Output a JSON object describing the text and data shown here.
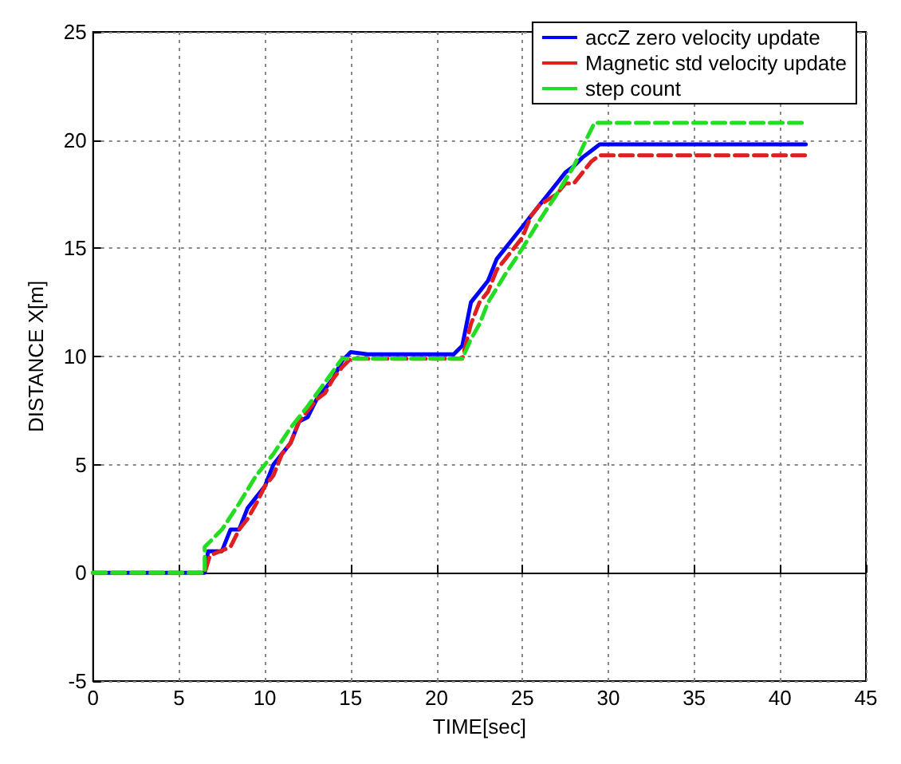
{
  "chart_data": {
    "type": "line",
    "xlabel": "TIME[sec]",
    "ylabel": "DISTANCE X[m]",
    "xlim": [
      0,
      45
    ],
    "xticks": [
      0,
      5,
      10,
      15,
      20,
      25,
      30,
      35,
      40,
      45
    ],
    "ylim": [
      -5,
      25
    ],
    "yticks": [
      -5,
      0,
      5,
      10,
      15,
      20,
      25
    ],
    "grid": true,
    "legend": "top right",
    "marker": "none",
    "series": [
      {
        "name": "accZ zero velocity update",
        "color": "#0000ff",
        "line_style": "solid",
        "x": [
          0,
          6.5,
          6.7,
          7.5,
          8,
          8.5,
          9,
          9.5,
          10,
          10.5,
          11,
          11.5,
          12,
          12.5,
          13,
          13.5,
          14,
          14.5,
          15,
          16,
          21,
          21.5,
          22,
          22.5,
          23,
          23.5,
          24,
          24.5,
          25,
          25.5,
          26,
          26.5,
          27,
          27.5,
          28,
          28.5,
          29,
          29.5,
          30,
          41.5
        ],
        "values": [
          0,
          0,
          1,
          1,
          2,
          2,
          3,
          3.5,
          4,
          5,
          5.5,
          6,
          7,
          7.2,
          8,
          8.5,
          9,
          9.8,
          10.2,
          10.1,
          10.1,
          10.5,
          12.5,
          13,
          13.5,
          14.5,
          15,
          15.5,
          16,
          16.5,
          17,
          17.5,
          18,
          18.5,
          18.8,
          19.2,
          19.5,
          19.8,
          19.8,
          19.8
        ]
      },
      {
        "name": "Magnetic std velocity update",
        "color": "#e02020",
        "line_style": "dashed",
        "x": [
          0,
          6.5,
          6.8,
          8,
          8.5,
          9,
          9.5,
          10,
          10.5,
          11,
          11.5,
          12,
          12.5,
          13,
          13.5,
          14,
          14.5,
          15,
          21.5,
          22,
          22.5,
          23,
          23.5,
          24,
          24.5,
          25,
          25.5,
          26,
          27,
          27.5,
          28,
          28.5,
          29,
          29.5,
          41.5
        ],
        "values": [
          0,
          0,
          0.8,
          1.2,
          2,
          2.5,
          3.2,
          4,
          4.5,
          5.5,
          6,
          7,
          7.5,
          8,
          8.3,
          9,
          9.5,
          9.9,
          9.9,
          11.5,
          12.5,
          13,
          14,
          14.5,
          15,
          15.5,
          16.5,
          17,
          17.5,
          18,
          18,
          18.5,
          19,
          19.3,
          19.3
        ]
      },
      {
        "name": "step count",
        "color": "#22dd22",
        "line_style": "dashed",
        "x": [
          0,
          6.5,
          6.5,
          7.5,
          8.5,
          9.5,
          10.5,
          11.5,
          12.5,
          13.5,
          14.5,
          21.5,
          22,
          22.5,
          23,
          24,
          25,
          26,
          27,
          28,
          28.7,
          29.2,
          41.5
        ],
        "values": [
          0,
          0,
          1.2,
          2,
          3.2,
          4.5,
          5.5,
          6.7,
          7.7,
          8.8,
          9.9,
          9.9,
          10.8,
          11.5,
          12.5,
          13.8,
          15,
          16.3,
          17.5,
          18.8,
          20,
          20.8,
          20.8
        ]
      }
    ]
  }
}
